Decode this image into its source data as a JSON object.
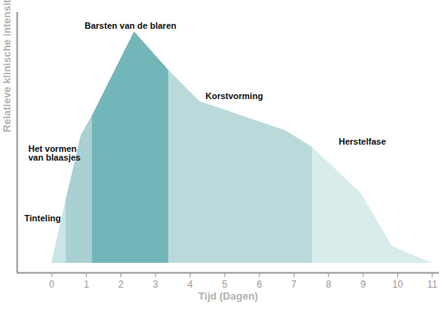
{
  "chart_data": {
    "type": "area",
    "xlabel": "Tijd (Dagen)",
    "ylabel": "Relatieve klinische intensiteit",
    "x": [
      0,
      0.41,
      0.85,
      1.17,
      2.39,
      3.38,
      4.28,
      6.76,
      7.54,
      8.94,
      9.84,
      11
    ],
    "values": [
      0,
      26,
      53,
      61,
      96,
      80,
      67,
      55,
      48,
      29,
      7,
      0
    ],
    "xlim": [
      -1,
      11.2
    ],
    "ylim": [
      -4,
      104
    ],
    "xticks": [
      0,
      1,
      2,
      3,
      4,
      5,
      6,
      7,
      8,
      9,
      10,
      11
    ],
    "tick_labels": "x",
    "phases": [
      {
        "name": "Tinteling",
        "start": 0,
        "end": 0.41,
        "color": "#cbe5e6"
      },
      {
        "name": "Het vormen\nvan blaasjes",
        "start": 0.41,
        "end": 1.17,
        "color": "#a9d1d3"
      },
      {
        "name": "Barsten van de blaren",
        "start": 1.17,
        "end": 3.38,
        "color": "#73b6b9"
      },
      {
        "name": "Korstvorming",
        "start": 3.38,
        "end": 7.54,
        "color": "#bad9da"
      },
      {
        "name": "Herstelfase",
        "start": 7.54,
        "end": 11,
        "color": "#d8ecec"
      }
    ]
  }
}
